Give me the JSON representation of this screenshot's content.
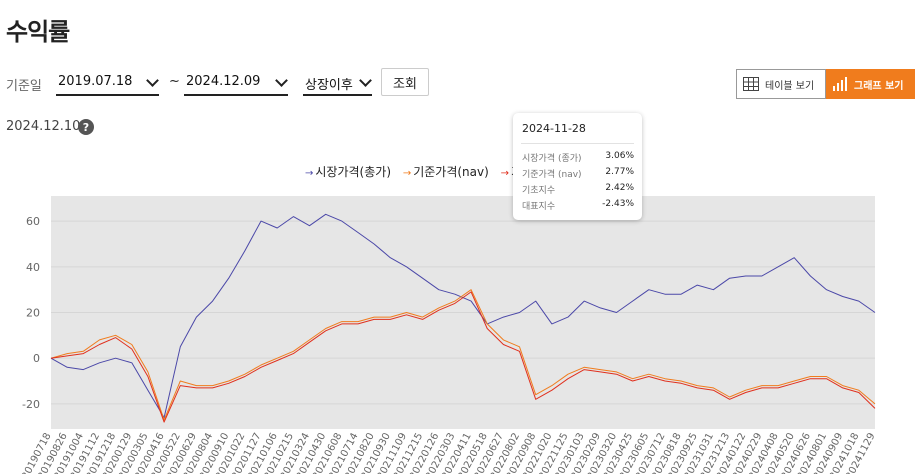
{
  "page_title": "수익률",
  "filters": {
    "base_date_label": "기준일",
    "start_date": "2019.07.18",
    "separator": "~",
    "end_date": "2024.12.09",
    "period": "상장이후",
    "query_button": "조회"
  },
  "view_toggle": {
    "table_label": "테이블 보기",
    "graph_label": "그래프 보기"
  },
  "as_of_date": "2024.12.10",
  "help_glyph": "?",
  "legend": [
    {
      "label": "시장가격(총가)",
      "color": "#4b48a8"
    },
    {
      "label": "기준가격(nav)",
      "color": "#f07c1d"
    },
    {
      "label": "기",
      "color": "#e0301e"
    }
  ],
  "tooltip": {
    "date": "2024-11-28",
    "rows": [
      {
        "label": "시장가격 (종가)",
        "value": "3.06%"
      },
      {
        "label": "기준가격 (nav)",
        "value": "2.77%"
      },
      {
        "label": "기초지수",
        "value": "2.42%"
      },
      {
        "label": "대표지수",
        "value": "-2.43%"
      }
    ]
  },
  "chart_data": {
    "type": "line",
    "ylim": [
      -31,
      71
    ],
    "yticks": [
      -20,
      0,
      20,
      40,
      60
    ],
    "x_ticks": [
      "20190718",
      "20190826",
      "20191004",
      "20191112",
      "20191218",
      "20200129",
      "20200305",
      "20200416",
      "20200522",
      "20200629",
      "20200804",
      "20200910",
      "20201022",
      "20201127",
      "20210106",
      "20210215",
      "20210324",
      "20210430",
      "20210608",
      "20210714",
      "20210820",
      "20210930",
      "20211109",
      "20211215",
      "20220126",
      "20220303",
      "20220411",
      "20220518",
      "20220627",
      "20220802",
      "20220908",
      "20221020",
      "20221125",
      "20230103",
      "20230209",
      "20230320",
      "20230425",
      "20230605",
      "20230712",
      "20230818",
      "20230925",
      "20231031",
      "20231213",
      "20240122",
      "20240229",
      "20240408",
      "20240520",
      "20240626",
      "20240801",
      "20240909",
      "20241018",
      "20241129"
    ],
    "series": [
      {
        "name": "시장가격(총가)",
        "color": "#4b48a8",
        "values": [
          0,
          -4,
          -5,
          -2,
          0,
          -2,
          -14,
          -26,
          5,
          18,
          25,
          35,
          47,
          60,
          57,
          62,
          58,
          63,
          60,
          55,
          50,
          44,
          40,
          35,
          30,
          28,
          25,
          15,
          18,
          20,
          25,
          15,
          18,
          25,
          22,
          20,
          25,
          30,
          28,
          28,
          32,
          30,
          35,
          36,
          36,
          40,
          44,
          36,
          30,
          27,
          25,
          20
        ]
      },
      {
        "name": "기준가격(nav)",
        "color": "#f07c1d",
        "values": [
          0,
          2,
          3,
          8,
          10,
          6,
          -6,
          -27,
          -10,
          -12,
          -12,
          -10,
          -7,
          -3,
          0,
          3,
          8,
          13,
          16,
          16,
          18,
          18,
          20,
          18,
          22,
          25,
          30,
          15,
          8,
          5,
          -16,
          -12,
          -7,
          -4,
          -5,
          -6,
          -9,
          -7,
          -9,
          -10,
          -12,
          -13,
          -17,
          -14,
          -12,
          -12,
          -10,
          -8,
          -8,
          -12,
          -14,
          -20
        ]
      },
      {
        "name": "기",
        "color": "#e0301e",
        "values": [
          0,
          1,
          2,
          6,
          9,
          4,
          -8,
          -28,
          -12,
          -13,
          -13,
          -11,
          -8,
          -4,
          -1,
          2,
          7,
          12,
          15,
          15,
          17,
          17,
          19,
          17,
          21,
          24,
          29,
          13,
          6,
          3,
          -18,
          -14,
          -9,
          -5,
          -6,
          -7,
          -10,
          -8,
          -10,
          -11,
          -13,
          -14,
          -18,
          -15,
          -13,
          -13,
          -11,
          -9,
          -9,
          -13,
          -15,
          -22
        ]
      }
    ]
  }
}
